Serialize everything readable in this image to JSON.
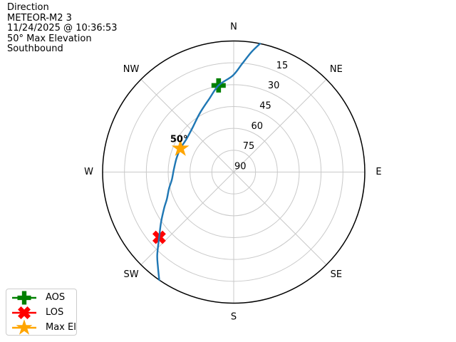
{
  "header": {
    "title": "Direction",
    "satellite": "METEOR-M2 3",
    "timestamp": "11/24/2025 @ 10:36:53",
    "max_elevation": "50° Max Elevation",
    "direction": "Southbound"
  },
  "legend": {
    "items": [
      {
        "label": "AOS",
        "marker": "aos-plus-icon",
        "shape": "plus",
        "color": "#008000"
      },
      {
        "label": "LOS",
        "marker": "los-x-icon",
        "shape": "x",
        "color": "#ff0000"
      },
      {
        "label": "Max El",
        "marker": "max-el-star-icon",
        "shape": "star",
        "color": "#ffa500"
      }
    ]
  },
  "chart_data": {
    "type": "line",
    "projection": "polar",
    "description": "Satellite pass sky track, azimuth (compass) vs elevation (rings, 90 at center)",
    "compass_labels": [
      "N",
      "NE",
      "E",
      "SE",
      "S",
      "SW",
      "W",
      "NW"
    ],
    "elevation_ticks": [
      15,
      30,
      45,
      60,
      75,
      90
    ],
    "elevation_range": [
      0,
      90
    ],
    "grid": true,
    "colors": {
      "track": "#1f77b4",
      "grid": "#c9c9c9",
      "outline": "#000000",
      "aos": "#008000",
      "los": "#ff0000",
      "max_el": "#ffa500"
    },
    "track": {
      "azimuth_deg": [
        11.6,
        8.5,
        4.5,
        359.5,
        350.1,
        341.4,
        330.0,
        317.4,
        305.0,
        293.9,
        283.0,
        272.0,
        263.0,
        255.5,
        248.0,
        242.8,
        235.5,
        228.8,
        222.7,
        218.5,
        214.6
      ],
      "elevation_deg": [
        0.0,
        6.5,
        15.3,
        23.7,
        29.6,
        37.1,
        43.4,
        48.4,
        50.4,
        50.0,
        49.6,
        48.8,
        47.2,
        44.1,
        40.5,
        36.4,
        29.5,
        22.0,
        12.6,
        6.5,
        0.0
      ]
    },
    "markers": [
      {
        "name": "AOS",
        "shape": "plus",
        "azimuth_deg": 350.1,
        "elevation_deg": 29.6,
        "color": "#008000"
      },
      {
        "name": "LOS",
        "shape": "x",
        "azimuth_deg": 228.8,
        "elevation_deg": 22.0,
        "color": "#ff0000"
      },
      {
        "name": "Max El",
        "shape": "star",
        "azimuth_deg": 293.9,
        "elevation_deg": 50.0,
        "color": "#ffa500",
        "annotation": "50°"
      }
    ]
  }
}
